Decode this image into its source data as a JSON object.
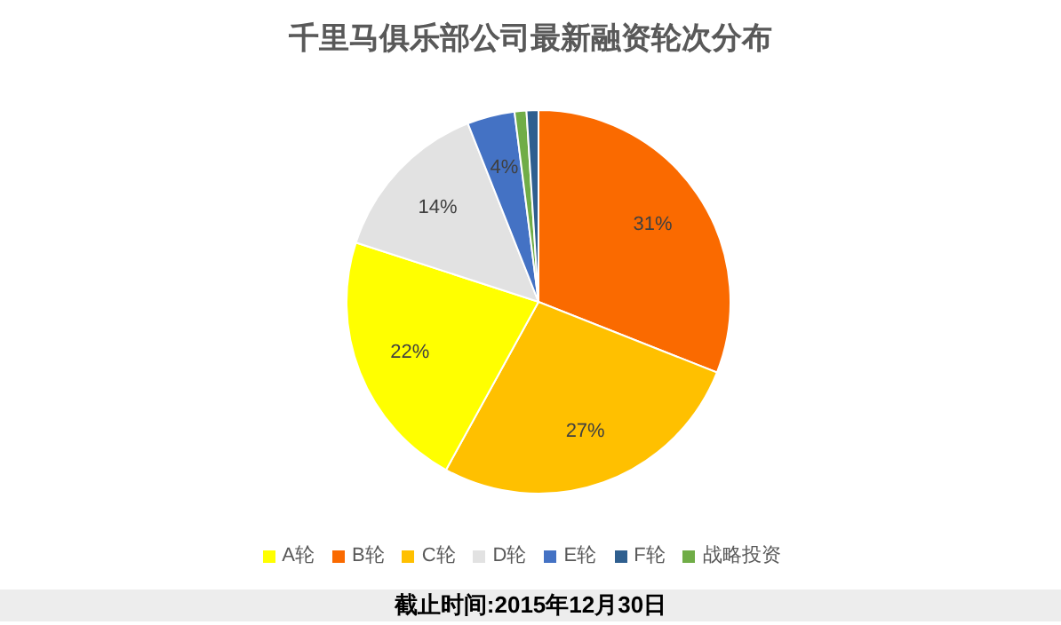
{
  "chart_data": {
    "type": "pie",
    "title": "千里马俱乐部公司最新融资轮次分布",
    "categories": [
      "B轮",
      "C轮",
      "A轮",
      "D轮",
      "E轮",
      "战略投资",
      "F轮"
    ],
    "values": [
      31,
      27,
      22,
      14,
      4,
      1,
      1
    ],
    "value_labels": [
      "31%",
      "27%",
      "22%",
      "14%",
      "4%",
      null,
      null
    ],
    "colors": [
      "#fa6a00",
      "#ffc000",
      "#ffff00",
      "#e2e2e2",
      "#4472c4",
      "#70ad47",
      "#2f5f8f"
    ],
    "legend": "bottom",
    "annotations": [
      "截止时间:2015年12月30日"
    ]
  }
}
